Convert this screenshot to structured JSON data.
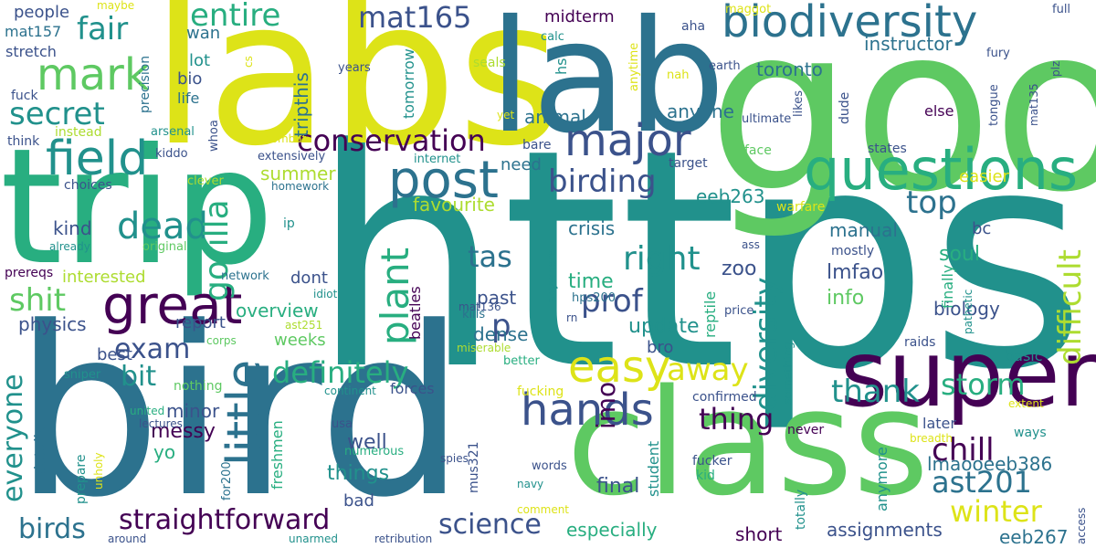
{
  "palette": {
    "purple": "#440154",
    "indigo": "#3b528b",
    "blue": "#2c728e",
    "teal": "#21918c",
    "green": "#28ae80",
    "lime": "#5ec962",
    "yellowgreen": "#addc30",
    "yellow": "#dde318"
  },
  "words": [
    {
      "text": "https",
      "color": "#21918c"
    },
    {
      "text": "good",
      "color": "#5ec962"
    },
    {
      "text": "labs",
      "color": "#dde318"
    },
    {
      "text": "bird",
      "color": "#2c728e"
    },
    {
      "text": "trip",
      "color": "#28ae80"
    },
    {
      "text": "lab",
      "color": "#2c728e"
    },
    {
      "text": "class",
      "color": "#5ec962"
    },
    {
      "text": "super",
      "color": "#440154"
    },
    {
      "text": "questions",
      "color": "#28ae80"
    },
    {
      "text": "biodiversity",
      "color": "#2c728e"
    },
    {
      "text": "mark",
      "color": "#5ec962"
    },
    {
      "text": "great",
      "color": "#440154"
    },
    {
      "text": "hands",
      "color": "#3b528b"
    },
    {
      "text": "easy",
      "color": "#dde318"
    },
    {
      "text": "post",
      "color": "#2c728e"
    },
    {
      "text": "field",
      "color": "#21918c"
    },
    {
      "text": "little",
      "color": "#2c728e"
    },
    {
      "text": "major",
      "color": "#3b528b"
    },
    {
      "text": "conservation",
      "color": "#440154"
    },
    {
      "text": "dead",
      "color": "#21918c"
    },
    {
      "text": "gorilla",
      "color": "#28ae80"
    },
    {
      "text": "plant",
      "color": "#28ae80"
    },
    {
      "text": "secret",
      "color": "#21918c"
    },
    {
      "text": "entire",
      "color": "#28ae80"
    },
    {
      "text": "fair",
      "color": "#21918c"
    },
    {
      "text": "mat165",
      "color": "#3b528b"
    },
    {
      "text": "straightforward",
      "color": "#440154"
    },
    {
      "text": "definitely",
      "color": "#28ae80"
    },
    {
      "text": "diversity",
      "color": "#21918c"
    },
    {
      "text": "prof",
      "color": "#3b528b"
    },
    {
      "text": "right",
      "color": "#21918c"
    },
    {
      "text": "birding",
      "color": "#3b528b"
    },
    {
      "text": "thank",
      "color": "#21918c"
    },
    {
      "text": "chill",
      "color": "#440154"
    },
    {
      "text": "storm",
      "color": "#28ae80"
    },
    {
      "text": "winter",
      "color": "#dde318"
    },
    {
      "text": "ast201",
      "color": "#2c728e"
    },
    {
      "text": "difficult",
      "color": "#addc30"
    },
    {
      "text": "away",
      "color": "#dde318"
    },
    {
      "text": "shit",
      "color": "#5ec962"
    },
    {
      "text": "exam",
      "color": "#3b528b"
    },
    {
      "text": "bit",
      "color": "#21918c"
    },
    {
      "text": "everyone",
      "color": "#21918c"
    },
    {
      "text": "birds",
      "color": "#2c728e"
    },
    {
      "text": "science",
      "color": "#3b528b"
    },
    {
      "text": "tas",
      "color": "#2c728e"
    },
    {
      "text": "thing",
      "color": "#440154"
    },
    {
      "text": "top",
      "color": "#2c728e"
    },
    {
      "text": "imo",
      "color": "#440154"
    },
    {
      "text": "p",
      "color": "#3b528b"
    },
    {
      "text": "toronto",
      "color": "#2c728e"
    },
    {
      "text": "instructor",
      "color": "#2c728e"
    },
    {
      "text": "lmaooeeb386",
      "color": "#2c728e"
    },
    {
      "text": "eeb267",
      "color": "#2c728e"
    },
    {
      "text": "final",
      "color": "#3b528b"
    },
    {
      "text": "things",
      "color": "#21918c"
    },
    {
      "text": "especially",
      "color": "#28ae80"
    },
    {
      "text": "assignments",
      "color": "#3b528b"
    },
    {
      "text": "short",
      "color": "#440154"
    },
    {
      "text": "biology",
      "color": "#3b528b"
    },
    {
      "text": "lmfao",
      "color": "#3b528b"
    },
    {
      "text": "info",
      "color": "#5ec962"
    },
    {
      "text": "update",
      "color": "#21918c"
    },
    {
      "text": "time",
      "color": "#28ae80"
    },
    {
      "text": "zoo",
      "color": "#3b528b"
    },
    {
      "text": "soul",
      "color": "#28ae80"
    },
    {
      "text": "crisis",
      "color": "#2c728e"
    },
    {
      "text": "manual",
      "color": "#2c728e"
    },
    {
      "text": "eeb263",
      "color": "#21918c"
    },
    {
      "text": "need",
      "color": "#2c728e"
    },
    {
      "text": "favourite",
      "color": "#addc30"
    },
    {
      "text": "summer",
      "color": "#addc30"
    },
    {
      "text": "kind",
      "color": "#3b528b"
    },
    {
      "text": "interested",
      "color": "#addc30"
    },
    {
      "text": "overview",
      "color": "#28ae80"
    },
    {
      "text": "report",
      "color": "#3b528b"
    },
    {
      "text": "physics",
      "color": "#3b528b"
    },
    {
      "text": "best",
      "color": "#3b528b"
    },
    {
      "text": "weeks",
      "color": "#5ec962"
    },
    {
      "text": "minor",
      "color": "#3b528b"
    },
    {
      "text": "messy",
      "color": "#440154"
    },
    {
      "text": "yo",
      "color": "#28ae80"
    },
    {
      "text": "well",
      "color": "#3b528b"
    },
    {
      "text": "bad",
      "color": "#3b528b"
    },
    {
      "text": "dense",
      "color": "#2c728e"
    },
    {
      "text": "past",
      "color": "#3b528b"
    },
    {
      "text": "dont",
      "color": "#3b528b"
    },
    {
      "text": "animal",
      "color": "#2c728e"
    },
    {
      "text": "anyone",
      "color": "#2c728e"
    },
    {
      "text": "midterm",
      "color": "#440154"
    },
    {
      "text": "people",
      "color": "#3b528b"
    },
    {
      "text": "wan",
      "color": "#2c728e"
    },
    {
      "text": "lot",
      "color": "#21918c"
    },
    {
      "text": "bio",
      "color": "#3b528b"
    },
    {
      "text": "life",
      "color": "#2c728e"
    },
    {
      "text": "mat157",
      "color": "#2c728e"
    },
    {
      "text": "stretch",
      "color": "#3b528b"
    },
    {
      "text": "fuck",
      "color": "#3b528b"
    },
    {
      "text": "think",
      "color": "#3b528b"
    },
    {
      "text": "instead",
      "color": "#addc30"
    },
    {
      "text": "arsenal",
      "color": "#21918c"
    },
    {
      "text": "kiddo",
      "color": "#3b528b"
    },
    {
      "text": "choices",
      "color": "#3b528b"
    },
    {
      "text": "clever",
      "color": "#addc30"
    },
    {
      "text": "extensively",
      "color": "#3b528b"
    },
    {
      "text": "homework",
      "color": "#2c728e"
    },
    {
      "text": "internet",
      "color": "#21918c"
    },
    {
      "text": "already",
      "color": "#21918c"
    },
    {
      "text": "original",
      "color": "#5ec962"
    },
    {
      "text": "prereqs",
      "color": "#440154"
    },
    {
      "text": "network",
      "color": "#2c728e"
    },
    {
      "text": "idiot",
      "color": "#21918c"
    },
    {
      "text": "ip",
      "color": "#21918c"
    },
    {
      "text": "ast251",
      "color": "#addc30"
    },
    {
      "text": "corps",
      "color": "#5ec962"
    },
    {
      "text": "sniper",
      "color": "#21918c"
    },
    {
      "text": "nothing",
      "color": "#5ec962"
    },
    {
      "text": "united",
      "color": "#28ae80"
    },
    {
      "text": "lectures",
      "color": "#3b528b"
    },
    {
      "text": "prepare",
      "color": "#21918c"
    },
    {
      "text": "unholy",
      "color": "#dde318"
    },
    {
      "text": "details",
      "color": "#2c728e"
    },
    {
      "text": "around",
      "color": "#3b528b"
    },
    {
      "text": "unarmed",
      "color": "#21918c"
    },
    {
      "text": "retribution",
      "color": "#3b528b"
    },
    {
      "text": "continent",
      "color": "#21918c"
    },
    {
      "text": "forces",
      "color": "#3b528b"
    },
    {
      "text": "numerous",
      "color": "#28ae80"
    },
    {
      "text": "usa",
      "color": "#3b528b"
    },
    {
      "text": "freshmen",
      "color": "#28ae80"
    },
    {
      "text": "for200",
      "color": "#2c728e"
    },
    {
      "text": "beatles",
      "color": "#440154"
    },
    {
      "text": "mat136",
      "color": "#3b528b"
    },
    {
      "text": "kills",
      "color": "#2c728e"
    },
    {
      "text": "miserable",
      "color": "#addc30"
    },
    {
      "text": "better",
      "color": "#28ae80"
    },
    {
      "text": "fucking",
      "color": "#dde318"
    },
    {
      "text": "mus321",
      "color": "#3b528b"
    },
    {
      "text": "spies",
      "color": "#3b528b"
    },
    {
      "text": "navy",
      "color": "#21918c"
    },
    {
      "text": "comment",
      "color": "#dde318"
    },
    {
      "text": "words",
      "color": "#3b528b"
    },
    {
      "text": "rn",
      "color": "#3b528b"
    },
    {
      "text": "hps200",
      "color": "#2c728e"
    },
    {
      "text": "anywhere",
      "color": "#21918c"
    },
    {
      "text": "reptile",
      "color": "#28ae80"
    },
    {
      "text": "student",
      "color": "#21918c"
    },
    {
      "text": "confirmed",
      "color": "#3b528b"
    },
    {
      "text": "fucker",
      "color": "#3b528b"
    },
    {
      "text": "kid",
      "color": "#28ae80"
    },
    {
      "text": "bro",
      "color": "#3b528b"
    },
    {
      "text": "price",
      "color": "#3b528b"
    },
    {
      "text": "something",
      "color": "#21918c"
    },
    {
      "text": "never",
      "color": "#440154"
    },
    {
      "text": "totally",
      "color": "#21918c"
    },
    {
      "text": "anymore",
      "color": "#21918c"
    },
    {
      "text": "later",
      "color": "#3b528b"
    },
    {
      "text": "ways",
      "color": "#21918c"
    },
    {
      "text": "basic",
      "color": "#21918c"
    },
    {
      "text": "extent",
      "color": "#dde318"
    },
    {
      "text": "breadth",
      "color": "#dde318"
    },
    {
      "text": "access",
      "color": "#3b528b"
    },
    {
      "text": "raids",
      "color": "#3b528b"
    },
    {
      "text": "pathetic",
      "color": "#21918c"
    },
    {
      "text": "finally",
      "color": "#28ae80"
    },
    {
      "text": "mostly",
      "color": "#3b528b"
    },
    {
      "text": "ass",
      "color": "#3b528b"
    },
    {
      "text": "warfare",
      "color": "#dde318"
    },
    {
      "text": "easier",
      "color": "#dde318"
    },
    {
      "text": "bc",
      "color": "#3b528b"
    },
    {
      "text": "face",
      "color": "#5ec962"
    },
    {
      "text": "states",
      "color": "#3b528b"
    },
    {
      "text": "target",
      "color": "#3b528b"
    },
    {
      "text": "bare",
      "color": "#3b528b"
    },
    {
      "text": "combat",
      "color": "#dde318"
    },
    {
      "text": "whoa",
      "color": "#3b528b"
    },
    {
      "text": "precision",
      "color": "#2c728e"
    },
    {
      "text": "cs",
      "color": "#dde318"
    },
    {
      "text": "maybe",
      "color": "#dde318"
    },
    {
      "text": "seals",
      "color": "#addc30"
    },
    {
      "text": "yet",
      "color": "#dde318"
    },
    {
      "text": "years",
      "color": "#3b528b"
    },
    {
      "text": "calc",
      "color": "#21918c"
    },
    {
      "text": "hs",
      "color": "#21918c"
    },
    {
      "text": "tomorrow",
      "color": "#21918c"
    },
    {
      "text": "tripthis",
      "color": "#2c728e"
    },
    {
      "text": "anytime",
      "color": "#dde318"
    },
    {
      "text": "nah",
      "color": "#dde318"
    },
    {
      "text": "aha",
      "color": "#3b528b"
    },
    {
      "text": "maggot",
      "color": "#dde318"
    },
    {
      "text": "earth",
      "color": "#3b528b"
    },
    {
      "text": "dude",
      "color": "#3b528b"
    },
    {
      "text": "ultimate",
      "color": "#3b528b"
    },
    {
      "text": "likes",
      "color": "#3b528b"
    },
    {
      "text": "fury",
      "color": "#3b528b"
    },
    {
      "text": "else",
      "color": "#440154"
    },
    {
      "text": "tongue",
      "color": "#3b528b"
    },
    {
      "text": "mat135",
      "color": "#3b528b"
    },
    {
      "text": "plz",
      "color": "#3b528b"
    },
    {
      "text": "full",
      "color": "#3b528b"
    }
  ]
}
